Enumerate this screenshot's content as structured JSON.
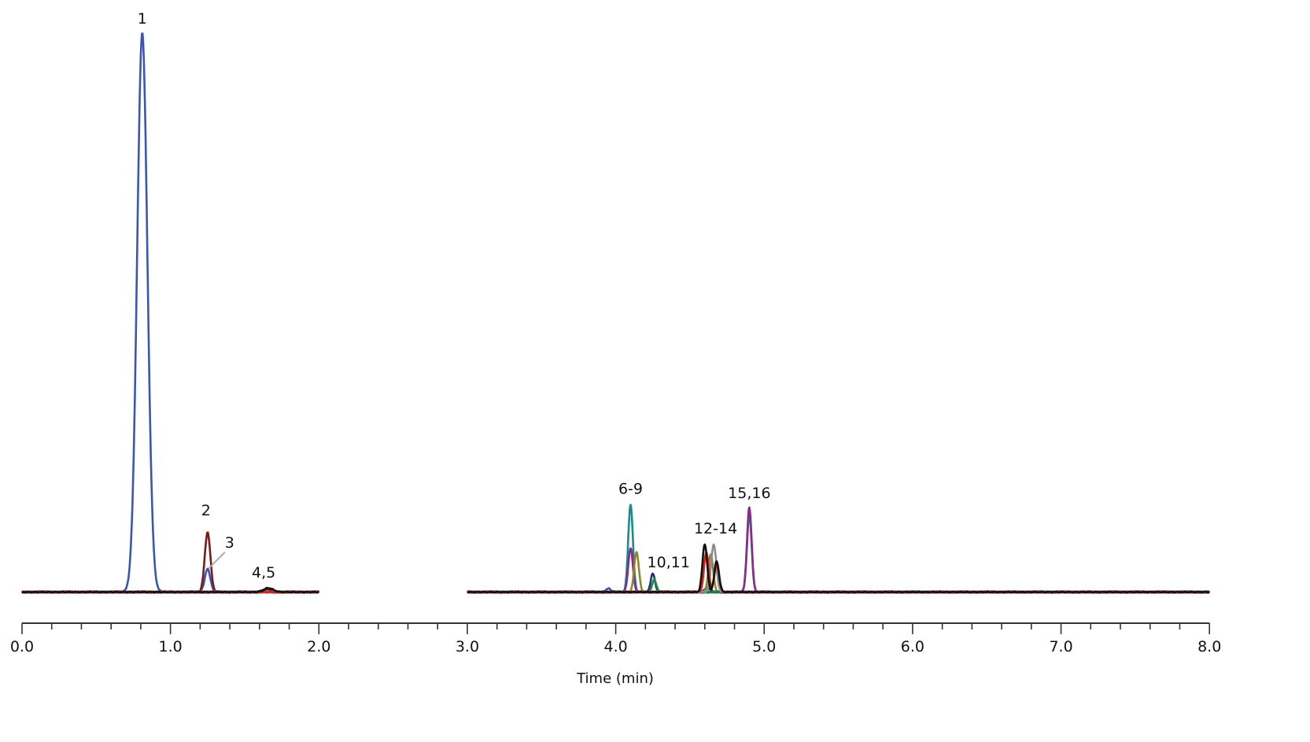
{
  "chart_data": {
    "type": "line",
    "title": "",
    "xlabel": "Time (min)",
    "ylabel": "",
    "xlim": [
      0.0,
      8.0
    ],
    "x_ticks": [
      "0.0",
      "1.0",
      "2.0",
      "3.0",
      "4.0",
      "5.0",
      "6.0",
      "7.0",
      "8.0"
    ],
    "minor_tick_step": 0.2,
    "y_axis_visible": false,
    "grid": false,
    "legend": "none",
    "segments_plotted": [
      [
        0.0,
        2.0
      ],
      [
        3.0,
        8.0
      ]
    ],
    "peak_labels": [
      {
        "label": "1",
        "time": 0.81,
        "relative_height": 1.0
      },
      {
        "label": "2",
        "time": 1.25,
        "relative_height": 0.107
      },
      {
        "label": "3",
        "time": 1.25,
        "relative_height": 0.041,
        "leader_line": true
      },
      {
        "label": "4,5",
        "time": 1.66,
        "relative_height": 0.007
      },
      {
        "label": "6-9",
        "time": 4.1,
        "relative_height": 0.157
      },
      {
        "label": "10,11",
        "time": 4.25,
        "relative_height": 0.034
      },
      {
        "label": "12-14",
        "time": 4.62,
        "relative_height": 0.086
      },
      {
        "label": "15,16",
        "time": 4.9,
        "relative_height": 0.152
      }
    ],
    "series": [
      {
        "name": "trace-blue",
        "color": "#3a56b4",
        "peaks": [
          {
            "t": 0.81,
            "h": 1.0,
            "w": 0.055
          },
          {
            "t": 1.25,
            "h": 0.041,
            "w": 0.03
          },
          {
            "t": 1.65,
            "h": 0.004,
            "w": 0.05
          },
          {
            "t": 3.95,
            "h": 0.006,
            "w": 0.03
          },
          {
            "t": 4.62,
            "h": 0.006,
            "w": 0.04
          }
        ]
      },
      {
        "name": "trace-darkred",
        "color": "#7a1a1a",
        "peaks": [
          {
            "t": 1.25,
            "h": 0.107,
            "w": 0.03
          },
          {
            "t": 1.66,
            "h": 0.006,
            "w": 0.05
          }
        ]
      },
      {
        "name": "trace-teal",
        "color": "#1a8a8a",
        "peaks": [
          {
            "t": 4.1,
            "h": 0.157,
            "w": 0.025
          },
          {
            "t": 4.9,
            "h": 0.138,
            "w": 0.025
          }
        ]
      },
      {
        "name": "trace-purple",
        "color": "#8a2a8a",
        "peaks": [
          {
            "t": 4.1,
            "h": 0.078,
            "w": 0.025
          },
          {
            "t": 4.9,
            "h": 0.152,
            "w": 0.025
          }
        ]
      },
      {
        "name": "trace-olive",
        "color": "#8a8a2a",
        "peaks": [
          {
            "t": 4.14,
            "h": 0.072,
            "w": 0.025
          },
          {
            "t": 4.64,
            "h": 0.068,
            "w": 0.025
          }
        ]
      },
      {
        "name": "trace-navy",
        "color": "#22307a",
        "peaks": [
          {
            "t": 4.25,
            "h": 0.034,
            "w": 0.022
          }
        ]
      },
      {
        "name": "trace-green",
        "color": "#1a8a3a",
        "peaks": [
          {
            "t": 4.26,
            "h": 0.022,
            "w": 0.022
          }
        ]
      },
      {
        "name": "trace-gray",
        "color": "#8c8c8c",
        "peaks": [
          {
            "t": 4.66,
            "h": 0.085,
            "w": 0.028
          }
        ]
      },
      {
        "name": "trace-red",
        "color": "#e01b1b",
        "peaks": [
          {
            "t": 4.61,
            "h": 0.07,
            "w": 0.025
          },
          {
            "t": 4.68,
            "h": 0.05,
            "w": 0.025
          }
        ]
      },
      {
        "name": "trace-black",
        "color": "#111111",
        "peaks": [
          {
            "t": 4.6,
            "h": 0.086,
            "w": 0.025
          },
          {
            "t": 4.68,
            "h": 0.055,
            "w": 0.025
          },
          {
            "t": 1.66,
            "h": 0.007,
            "w": 0.05
          }
        ]
      }
    ]
  }
}
